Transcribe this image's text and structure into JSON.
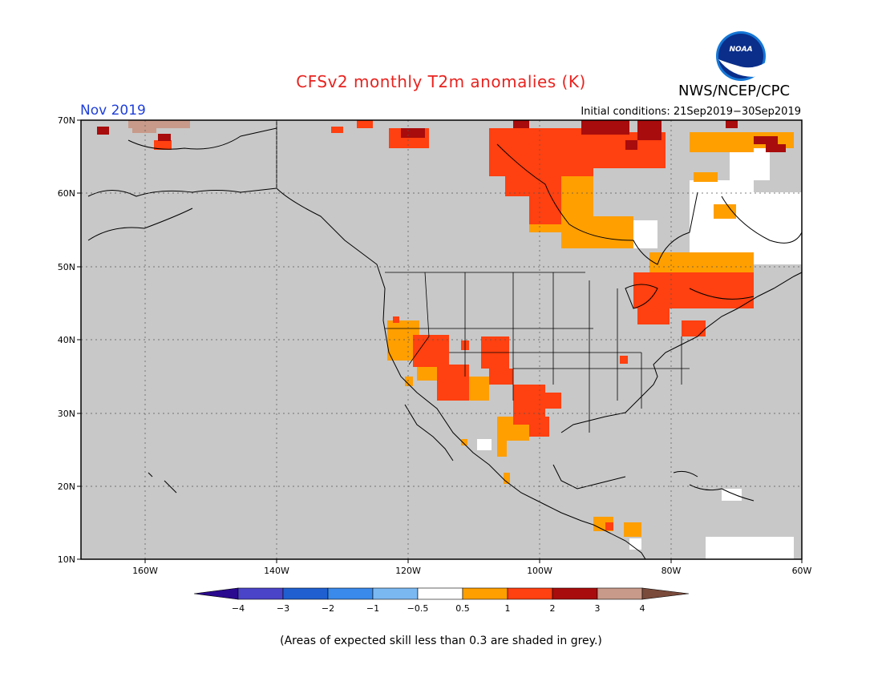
{
  "header": {
    "title": "CFSv2 monthly T2m anomalies (K)",
    "agency": "NWS/NCEP/CPC",
    "logo_text": "NOAA",
    "forecast_month": "Nov 2019",
    "initial_conditions": "Initial conditions: 21Sep2019−30Sep2019"
  },
  "map": {
    "lat_labels": [
      "70N",
      "60N",
      "50N",
      "40N",
      "30N",
      "20N",
      "10N"
    ],
    "lon_labels": [
      "160W",
      "140W",
      "120W",
      "100W",
      "80W",
      "60W"
    ],
    "land_color": "#c8c8c8"
  },
  "colorbar": {
    "tick_labels": [
      "−4",
      "−3",
      "−2",
      "−1",
      "−0.5",
      "0.5",
      "1",
      "2",
      "3",
      "4"
    ],
    "colors": [
      "#2a0a8e",
      "#4a44c8",
      "#1f5fd0",
      "#3a8aeb",
      "#7ab8f2",
      "#ffffff",
      "#ff9f00",
      "#ff4010",
      "#a80c0c",
      "#c89a8a",
      "#7a4a3a"
    ]
  },
  "footnote": "(Areas of expected skill less than 0.3 are shaded in grey.)"
}
